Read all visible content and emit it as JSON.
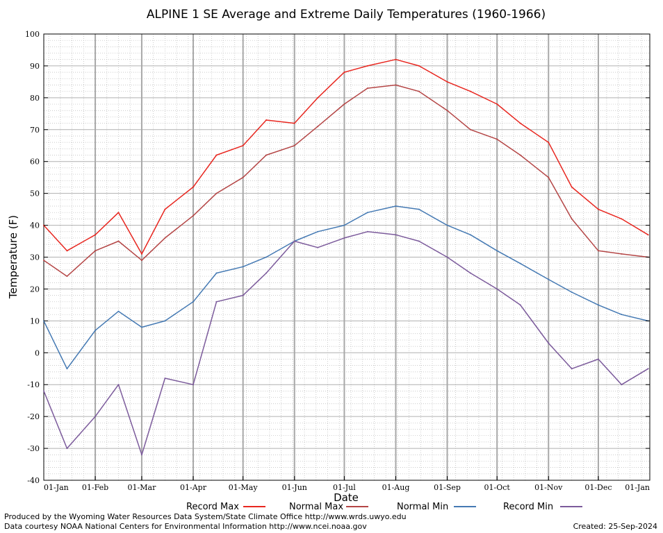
{
  "chart_data": {
    "type": "line",
    "title": "ALPINE 1 SE Average and Extreme Daily Temperatures (1960-1966)",
    "xlabel": "Date",
    "ylabel": "Temperature (F)",
    "ylim": [
      -40,
      100
    ],
    "y_ticks": [
      "100",
      "90",
      "80",
      "70",
      "60",
      "50",
      "40",
      "30",
      "20",
      "10",
      "0",
      "-10",
      "-20",
      "-30",
      "-40"
    ],
    "x_tick_labels": [
      "01-Jan",
      "01-Feb",
      "01-Mar",
      "01-Apr",
      "01-May",
      "01-Jun",
      "01-Jul",
      "01-Aug",
      "01-Sep",
      "01-Oct",
      "01-Nov",
      "01-Dec",
      "01-Jan"
    ],
    "grid": true,
    "legend_position": "bottom",
    "series": [
      {
        "name": "Record Max",
        "color": "#e8261f",
        "x": [
          "01-Jan",
          "15-Jan",
          "01-Feb",
          "15-Feb",
          "01-Mar",
          "15-Mar",
          "01-Apr",
          "15-Apr",
          "01-May",
          "15-May",
          "01-Jun",
          "15-Jun",
          "01-Jul",
          "15-Jul",
          "01-Aug",
          "15-Aug",
          "01-Sep",
          "15-Sep",
          "01-Oct",
          "15-Oct",
          "01-Nov",
          "15-Nov",
          "01-Dec",
          "15-Dec",
          "31-Dec"
        ],
        "values": [
          40,
          32,
          37,
          44,
          31,
          45,
          52,
          62,
          65,
          73,
          72,
          80,
          88,
          90,
          92,
          90,
          85,
          82,
          78,
          72,
          66,
          52,
          45,
          42,
          37
        ]
      },
      {
        "name": "Normal Max",
        "color": "#b44545",
        "x": [
          "01-Jan",
          "15-Jan",
          "01-Feb",
          "15-Feb",
          "01-Mar",
          "15-Mar",
          "01-Apr",
          "15-Apr",
          "01-May",
          "15-May",
          "01-Jun",
          "15-Jun",
          "01-Jul",
          "15-Jul",
          "01-Aug",
          "15-Aug",
          "01-Sep",
          "15-Sep",
          "01-Oct",
          "15-Oct",
          "01-Nov",
          "15-Nov",
          "01-Dec",
          "15-Dec",
          "31-Dec"
        ],
        "values": [
          29,
          24,
          32,
          35,
          29,
          36,
          43,
          50,
          55,
          62,
          65,
          71,
          78,
          83,
          84,
          82,
          76,
          70,
          67,
          62,
          55,
          42,
          32,
          31,
          30
        ]
      },
      {
        "name": "Normal Min",
        "color": "#4479b3",
        "x": [
          "01-Jan",
          "15-Jan",
          "01-Feb",
          "15-Feb",
          "01-Mar",
          "15-Mar",
          "01-Apr",
          "15-Apr",
          "01-May",
          "15-May",
          "01-Jun",
          "15-Jun",
          "01-Jul",
          "15-Jul",
          "01-Aug",
          "15-Aug",
          "01-Sep",
          "15-Sep",
          "01-Oct",
          "15-Oct",
          "01-Nov",
          "15-Nov",
          "01-Dec",
          "15-Dec",
          "31-Dec"
        ],
        "values": [
          10,
          -5,
          7,
          13,
          8,
          10,
          16,
          25,
          27,
          30,
          35,
          38,
          40,
          44,
          46,
          45,
          40,
          37,
          32,
          28,
          23,
          19,
          15,
          12,
          10
        ]
      },
      {
        "name": "Record Min",
        "color": "#7b5a9b",
        "x": [
          "01-Jan",
          "15-Jan",
          "01-Feb",
          "15-Feb",
          "01-Mar",
          "15-Mar",
          "01-Apr",
          "15-Apr",
          "01-May",
          "15-May",
          "01-Jun",
          "15-Jun",
          "01-Jul",
          "15-Jul",
          "01-Aug",
          "15-Aug",
          "01-Sep",
          "15-Sep",
          "01-Oct",
          "15-Oct",
          "01-Nov",
          "15-Nov",
          "01-Dec",
          "15-Dec",
          "31-Dec"
        ],
        "values": [
          -12,
          -30,
          -20,
          -10,
          -32,
          -8,
          -10,
          16,
          18,
          25,
          35,
          33,
          36,
          38,
          37,
          35,
          30,
          25,
          20,
          15,
          3,
          -5,
          -2,
          -10,
          -5
        ]
      }
    ]
  },
  "footer": {
    "produced_by": "Produced by the Wyoming Water Resources Data System/State Climate Office http://www.wrds.uwyo.edu",
    "data_courtesy": "Data courtesy NOAA National Centers for Environmental Information http://www.ncei.noaa.gov",
    "created": "Created: 25-Sep-2024"
  }
}
